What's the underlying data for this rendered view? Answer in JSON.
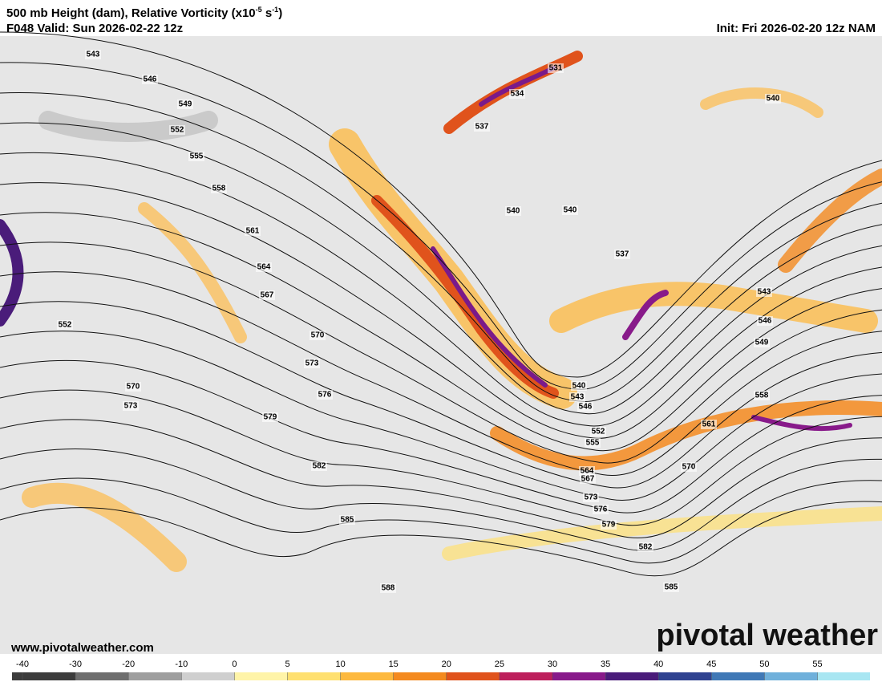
{
  "header": {
    "title": "500 mb Height (dam), Relative Vorticity (x10",
    "title_exp1": "-5",
    "title_unit": " s",
    "title_exp2": "-1",
    "title_close": ")",
    "valid": "F048 Valid: Sun 2026-02-22 12z",
    "init": "Init: Fri 2026-02-20 12z NAM"
  },
  "map": {
    "contour_labels": [
      543,
      546,
      549,
      552,
      555,
      558,
      561,
      564,
      567,
      570,
      573,
      576,
      579,
      582,
      585,
      588,
      552,
      570,
      573,
      531,
      534,
      537,
      540,
      540,
      537,
      540,
      540,
      543,
      546,
      552,
      555,
      564,
      567,
      573,
      576,
      579,
      582,
      585,
      570,
      561,
      558,
      549,
      546,
      543
    ]
  },
  "footer": {
    "website": "www.pivotalweather.com",
    "logo": "pivotal weather"
  },
  "colorbar": {
    "ticks": [
      -40,
      -30,
      -20,
      -10,
      0,
      5,
      10,
      15,
      20,
      25,
      30,
      35,
      40,
      45,
      50,
      55
    ],
    "colors": [
      "#3c3c3c",
      "#6e6e6e",
      "#9e9e9e",
      "#cfcfcf",
      "#fff4a8",
      "#ffe070",
      "#fdb93f",
      "#f48a1f",
      "#e0531c",
      "#bd1f5c",
      "#881a8a",
      "#4a1c7a",
      "#2f4290",
      "#3f78b6",
      "#6fb0db",
      "#a8e6f2"
    ]
  }
}
